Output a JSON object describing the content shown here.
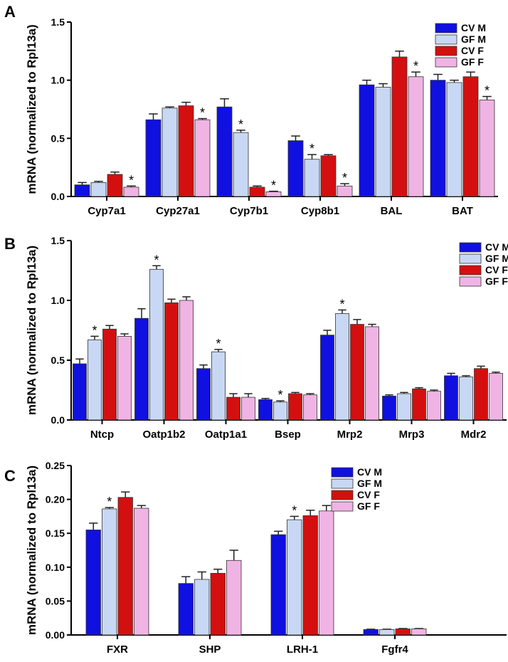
{
  "figure": {
    "series_colors": [
      "#1010e0",
      "#c8d8f4",
      "#d40f0f",
      "#f0b4e4"
    ]
  },
  "chart_data": [
    {
      "type": "bar",
      "panel_label": "A",
      "ylabel": "mRNA (normalized to Rpl13a)",
      "ylim": [
        0,
        1.5
      ],
      "yticks": [
        "0.0",
        "0.5",
        "1.0",
        "1.5"
      ],
      "ytick_values": [
        0,
        0.5,
        1.0,
        1.5
      ],
      "categories": [
        "Cyp7a1",
        "Cyp27a1",
        "Cyp7b1",
        "Cyp8b1",
        "BAL",
        "BAT"
      ],
      "series": [
        {
          "name": "CV M",
          "values": [
            0.1,
            0.66,
            0.77,
            0.48,
            0.96,
            1.0
          ],
          "errors": [
            0.02,
            0.05,
            0.07,
            0.04,
            0.04,
            0.05
          ],
          "sig": [
            false,
            false,
            false,
            false,
            false,
            false
          ]
        },
        {
          "name": "GF M",
          "values": [
            0.12,
            0.76,
            0.55,
            0.32,
            0.94,
            0.98
          ],
          "errors": [
            0.01,
            0.01,
            0.02,
            0.04,
            0.03,
            0.02
          ],
          "sig": [
            false,
            false,
            true,
            true,
            false,
            false
          ]
        },
        {
          "name": "CV F",
          "values": [
            0.19,
            0.78,
            0.08,
            0.35,
            1.2,
            1.03
          ],
          "errors": [
            0.02,
            0.03,
            0.01,
            0.01,
            0.05,
            0.04
          ],
          "sig": [
            false,
            false,
            false,
            false,
            false,
            false
          ]
        },
        {
          "name": "GF F",
          "values": [
            0.08,
            0.66,
            0.04,
            0.09,
            1.03,
            0.83
          ],
          "errors": [
            0.01,
            0.01,
            0.005,
            0.02,
            0.04,
            0.03
          ],
          "sig": [
            true,
            true,
            true,
            true,
            true,
            true
          ]
        }
      ],
      "sig_marker": "*",
      "legend_position": "top-right"
    },
    {
      "type": "bar",
      "panel_label": "B",
      "ylabel": "mRNA (normalized to Rpl13a)",
      "ylim": [
        0,
        1.5
      ],
      "yticks": [
        "0.0",
        "0.5",
        "1.0",
        "1.5"
      ],
      "ytick_values": [
        0,
        0.5,
        1.0,
        1.5
      ],
      "categories": [
        "Ntcp",
        "Oatp1b2",
        "Oatp1a1",
        "Bsep",
        "Mrp2",
        "Mrp3",
        "Mdr2"
      ],
      "series": [
        {
          "name": "CV M",
          "values": [
            0.47,
            0.85,
            0.43,
            0.17,
            0.71,
            0.2,
            0.37
          ],
          "errors": [
            0.04,
            0.08,
            0.03,
            0.01,
            0.04,
            0.01,
            0.02
          ],
          "sig": [
            false,
            false,
            false,
            false,
            false,
            false,
            false
          ]
        },
        {
          "name": "GF M",
          "values": [
            0.67,
            1.26,
            0.57,
            0.15,
            0.89,
            0.22,
            0.36
          ],
          "errors": [
            0.03,
            0.03,
            0.02,
            0.01,
            0.03,
            0.01,
            0.01
          ],
          "sig": [
            true,
            true,
            true,
            true,
            true,
            false,
            false
          ]
        },
        {
          "name": "CV F",
          "values": [
            0.76,
            0.98,
            0.19,
            0.22,
            0.8,
            0.26,
            0.43
          ],
          "errors": [
            0.03,
            0.03,
            0.03,
            0.01,
            0.04,
            0.01,
            0.02
          ],
          "sig": [
            false,
            false,
            false,
            false,
            false,
            false,
            false
          ]
        },
        {
          "name": "GF F",
          "values": [
            0.7,
            1.0,
            0.19,
            0.21,
            0.78,
            0.24,
            0.39
          ],
          "errors": [
            0.02,
            0.03,
            0.03,
            0.01,
            0.02,
            0.01,
            0.01
          ],
          "sig": [
            false,
            false,
            false,
            false,
            false,
            false,
            false
          ]
        }
      ],
      "sig_marker": "*",
      "legend_position": "top-right"
    },
    {
      "type": "bar",
      "panel_label": "C",
      "ylabel": "mRNA (normalized to Rpl13a)",
      "ylim": [
        0,
        0.25
      ],
      "yticks": [
        "0.00",
        "0.05",
        "0.10",
        "0.15",
        "0.20",
        "0.25"
      ],
      "ytick_values": [
        0,
        0.05,
        0.1,
        0.15,
        0.2,
        0.25
      ],
      "categories": [
        "FXR",
        "SHP",
        "LRH-1",
        "Fgfr4"
      ],
      "series": [
        {
          "name": "CV M",
          "values": [
            0.155,
            0.076,
            0.148,
            0.008
          ],
          "errors": [
            0.01,
            0.01,
            0.005,
            0.0005
          ],
          "sig": [
            false,
            false,
            false,
            false
          ]
        },
        {
          "name": "GF M",
          "values": [
            0.186,
            0.082,
            0.17,
            0.008
          ],
          "errors": [
            0.002,
            0.011,
            0.005,
            0.0005
          ],
          "sig": [
            true,
            false,
            true,
            false
          ]
        },
        {
          "name": "CV F",
          "values": [
            0.203,
            0.091,
            0.176,
            0.009
          ],
          "errors": [
            0.008,
            0.006,
            0.008,
            0.0005
          ],
          "sig": [
            false,
            false,
            false,
            false
          ]
        },
        {
          "name": "GF F",
          "values": [
            0.187,
            0.11,
            0.183,
            0.009
          ],
          "errors": [
            0.004,
            0.015,
            0.008,
            0.0005
          ],
          "sig": [
            false,
            false,
            false,
            false
          ]
        }
      ],
      "sig_marker": "*",
      "legend_position": "top-right"
    }
  ]
}
